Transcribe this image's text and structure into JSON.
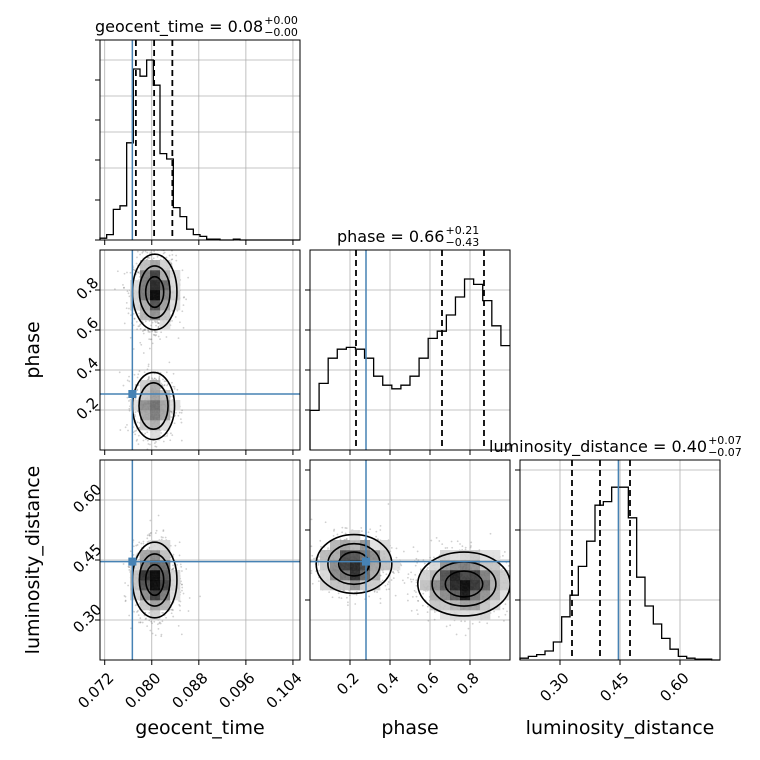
{
  "chart_data": {
    "type": "corner",
    "parameters": [
      "geocent_time",
      "phase",
      "luminosity_distance"
    ],
    "truth": {
      "geocent_time": 0.0767,
      "phase": 0.28,
      "luminosity_distance": 0.446
    },
    "titles": [
      {
        "param": "geocent_time",
        "text": "geocent_time = 0.08",
        "plus": "+0.00",
        "minus": "−0.00"
      },
      {
        "param": "phase",
        "text": "phase = 0.66",
        "plus": "+0.21",
        "minus": "−0.43"
      },
      {
        "param": "luminosity_distance",
        "text": "luminosity_distance = 0.40",
        "plus": "+0.07",
        "minus": "−0.07"
      }
    ],
    "axes": {
      "geocent_time": {
        "range": [
          0.0712,
          0.1052
        ],
        "ticks": [
          0.072,
          0.08,
          0.088,
          0.096,
          0.104
        ],
        "ticklabels": [
          "0.072",
          "0.080",
          "0.088",
          "0.096",
          "0.104"
        ],
        "xlabel": "geocent_time"
      },
      "phase": {
        "range": [
          0.0,
          1.0
        ],
        "ticks": [
          0.2,
          0.4,
          0.6,
          0.8
        ],
        "ticklabels": [
          "0.2",
          "0.4",
          "0.6",
          "0.8"
        ],
        "xlabel": "phase",
        "ylabel": "phase"
      },
      "luminosity_distance": {
        "range": [
          0.2,
          0.7
        ],
        "ticks": [
          0.3,
          0.45,
          0.6
        ],
        "ticklabels": [
          "0.30",
          "0.45",
          "0.60"
        ],
        "xlabel": "luminosity_distance",
        "ylabel": "luminosity_distance"
      }
    },
    "histograms": {
      "geocent_time": {
        "range": [
          0.0712,
          0.1052
        ],
        "quantiles": [
          0.0773,
          0.0804,
          0.0835
        ],
        "counts": [
          0.01,
          0.03,
          0.17,
          0.19,
          0.54,
          0.95,
          0.91,
          1.0,
          0.86,
          0.48,
          0.45,
          0.18,
          0.13,
          0.06,
          0.03,
          0.02,
          0.005,
          0.005,
          0.0,
          0.0,
          0.005,
          0.0,
          0.0,
          0.0,
          0.0,
          0.0,
          0.0,
          0.0,
          0.0,
          0.0
        ]
      },
      "phase": {
        "range": [
          0.0,
          1.0
        ],
        "quantiles": [
          0.23,
          0.66,
          0.87
        ],
        "counts": [
          0.22,
          0.37,
          0.51,
          0.56,
          0.57,
          0.56,
          0.51,
          0.41,
          0.36,
          0.34,
          0.36,
          0.41,
          0.51,
          0.62,
          0.66,
          0.75,
          0.85,
          0.95,
          0.92,
          0.83,
          0.69,
          0.58
        ]
      },
      "luminosity_distance": {
        "range": [
          0.2,
          0.7
        ],
        "quantiles": [
          0.33,
          0.4,
          0.475
        ],
        "counts": [
          0.01,
          0.02,
          0.03,
          0.05,
          0.1,
          0.24,
          0.36,
          0.52,
          0.66,
          0.86,
          0.88,
          0.96,
          0.96,
          0.79,
          0.46,
          0.3,
          0.2,
          0.12,
          0.06,
          0.02,
          0.01,
          0.005,
          0.005,
          0.0
        ]
      }
    },
    "pairs": [
      {
        "x": "geocent_time",
        "y": "phase",
        "modes": [
          {
            "cx": 0.0805,
            "cy": 0.79,
            "sx": 0.0018,
            "sy": 0.09,
            "w": 1.0
          },
          {
            "cx": 0.0803,
            "cy": 0.22,
            "sx": 0.0017,
            "sy": 0.08,
            "w": 0.55
          }
        ]
      },
      {
        "x": "geocent_time",
        "y": "luminosity_distance",
        "modes": [
          {
            "cx": 0.0805,
            "cy": 0.4,
            "sx": 0.0018,
            "sy": 0.045,
            "w": 1.0
          }
        ]
      },
      {
        "x": "phase",
        "y": "luminosity_distance",
        "modes": [
          {
            "cx": 0.77,
            "cy": 0.39,
            "sx": 0.11,
            "sy": 0.038,
            "w": 1.0
          },
          {
            "cx": 0.22,
            "cy": 0.44,
            "sx": 0.09,
            "sy": 0.035,
            "w": 0.7
          }
        ]
      }
    ],
    "truth_color": "#4682b4",
    "line_color": "#000000",
    "grid": true
  }
}
